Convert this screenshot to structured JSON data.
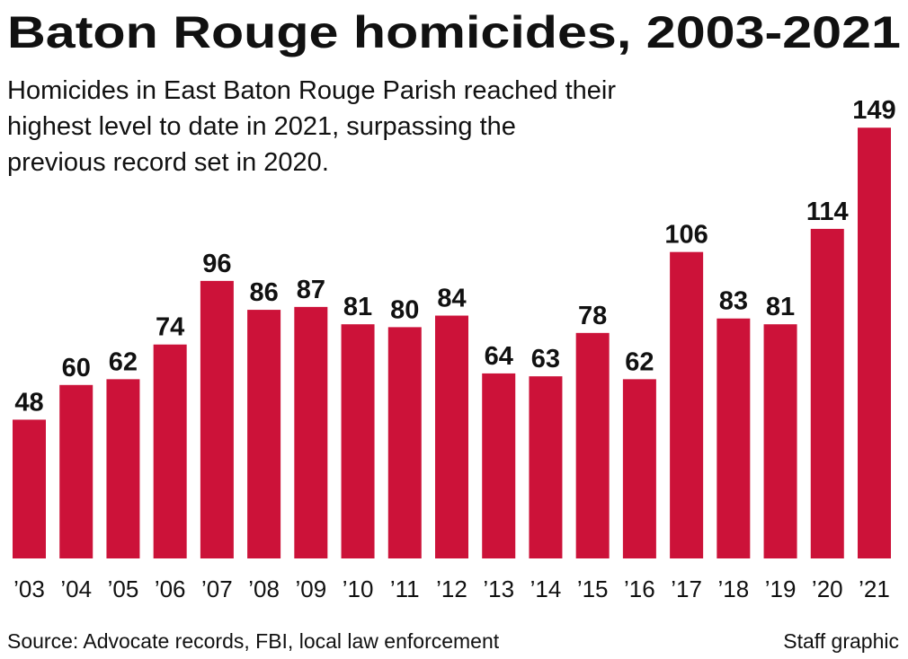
{
  "chart_data": {
    "type": "bar",
    "title": "Baton Rouge homicides, 2003-2021",
    "subtitle": [
      "Homicides in East Baton Rouge Parish reached their",
      "highest level to date in 2021, surpassing the",
      "previous record set in 2020."
    ],
    "categories": [
      "’03",
      "’04",
      "’05",
      "’06",
      "’07",
      "’08",
      "’09",
      "’10",
      "’11",
      "’12",
      "’13",
      "’14",
      "’15",
      "’16",
      "’17",
      "’18",
      "’19",
      "’20",
      "’21"
    ],
    "values": [
      48,
      60,
      62,
      74,
      96,
      86,
      87,
      81,
      80,
      84,
      64,
      63,
      78,
      62,
      106,
      83,
      81,
      114,
      149
    ],
    "color": "#cc1239",
    "source": "Source: Advocate records, FBI, local law enforcement",
    "credit": "Staff graphic"
  }
}
